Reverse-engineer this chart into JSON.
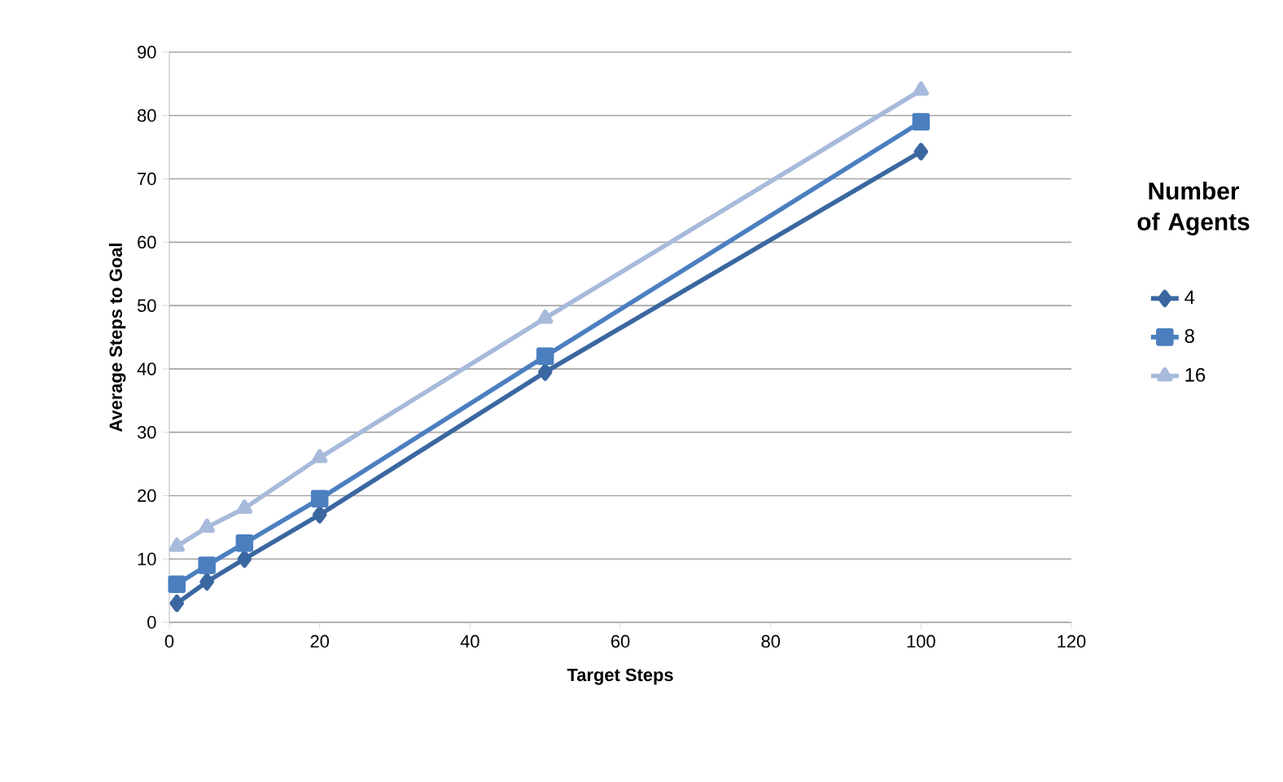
{
  "chart_data": {
    "type": "line",
    "xlabel": "Target Steps",
    "ylabel": "Average Steps to Goal",
    "legend_title": "Number of Agents",
    "x": [
      1,
      5,
      10,
      20,
      50,
      100
    ],
    "series": [
      {
        "name": "4",
        "color": "#3a67a0",
        "marker": "diamond",
        "values": [
          3,
          6.4,
          10,
          17,
          39.5,
          74.3
        ]
      },
      {
        "name": "8",
        "color": "#4b7fc0",
        "marker": "square",
        "values": [
          6,
          9,
          12.5,
          19.5,
          42,
          79
        ]
      },
      {
        "name": "16",
        "color": "#a8badb",
        "marker": "triangle",
        "values": [
          12,
          15,
          18,
          26,
          48,
          84
        ]
      }
    ],
    "xlim": [
      0,
      120
    ],
    "ylim": [
      0,
      90
    ],
    "xticks": [
      0,
      20,
      40,
      60,
      80,
      100,
      120
    ],
    "yticks": [
      0,
      10,
      20,
      30,
      40,
      50,
      60,
      70,
      80,
      90
    ],
    "grid": "y",
    "legend": "right",
    "line_style": "solid"
  }
}
